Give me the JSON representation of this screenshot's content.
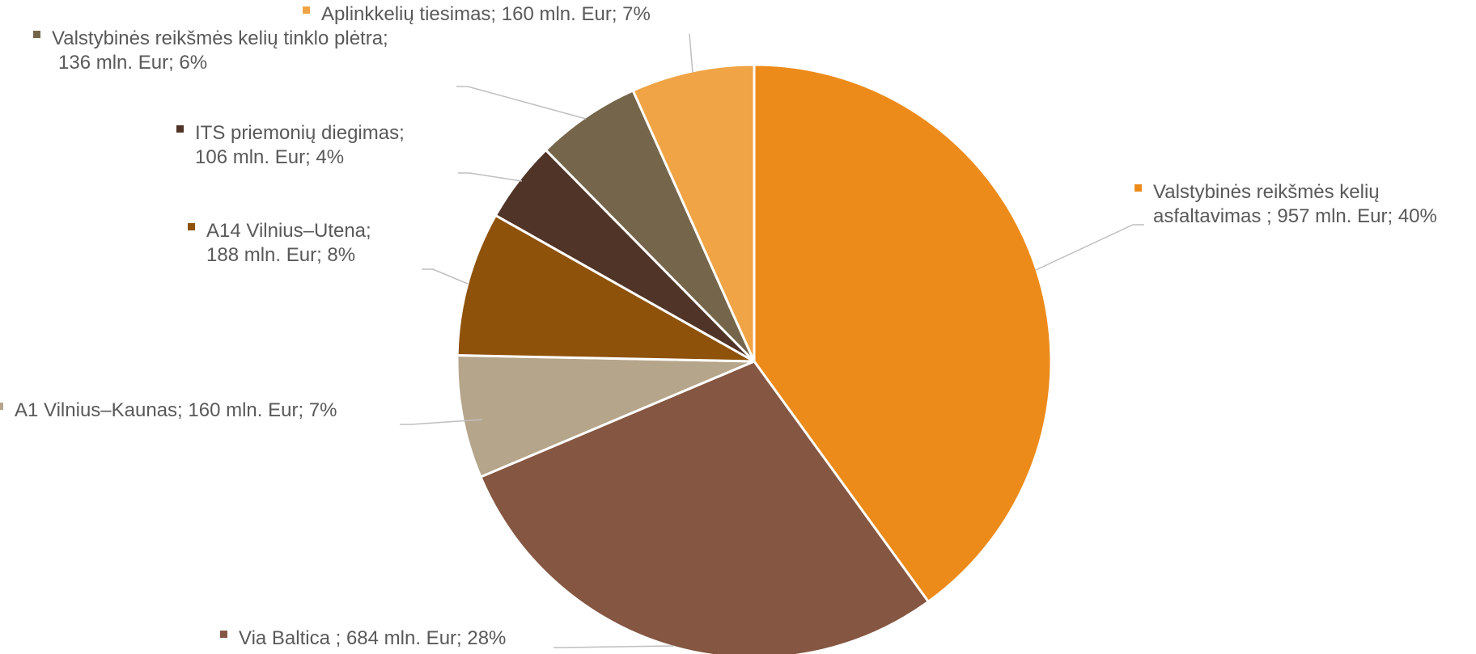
{
  "chart_data": {
    "type": "pie",
    "legend": "none",
    "slices": [
      {
        "name": "Valstybinės reikšmės kelių asfaltavimas",
        "value": 957,
        "percent": 40,
        "lines": [
          "Valstybinės reikšmės kelių",
          "asfaltavimas ; 957 mln. Eur; 40%"
        ],
        "color": "#ED8B1A"
      },
      {
        "name": "Via Baltica",
        "value": 684,
        "percent": 28,
        "lines": [
          "Via Baltica ; 684 mln. Eur; 28%"
        ],
        "color": "#855641"
      },
      {
        "name": "A1 Vilnius–Kaunas",
        "value": 160,
        "percent": 7,
        "lines": [
          "A1 Vilnius–Kaunas; 160 mln. Eur; 7%"
        ],
        "color": "#B5A58A"
      },
      {
        "name": "A14 Vilnius–Utena",
        "value": 188,
        "percent": 8,
        "lines": [
          "A14 Vilnius–Utena;",
          "188 mln. Eur; 8%"
        ],
        "color": "#8E520B"
      },
      {
        "name": "ITS priemonių diegimas",
        "value": 106,
        "percent": 4,
        "lines": [
          "ITS priemonių diegimas;",
          "106 mln. Eur; 4%"
        ],
        "color": "#503427"
      },
      {
        "name": "Valstybinės reikšmės kelių tinklo plėtra",
        "value": 136,
        "percent": 6,
        "lines": [
          "Valstybinės reikšmės kelių tinklo plėtra;",
          "136 mln. Eur; 6%"
        ],
        "color": "#75664B"
      },
      {
        "name": "Aplinkkelių tiesimas",
        "value": 160,
        "percent": 7,
        "lines": [
          "Aplinkkelių tiesimas; 160 mln. Eur; 7%"
        ],
        "color": "#F0A445"
      }
    ]
  }
}
